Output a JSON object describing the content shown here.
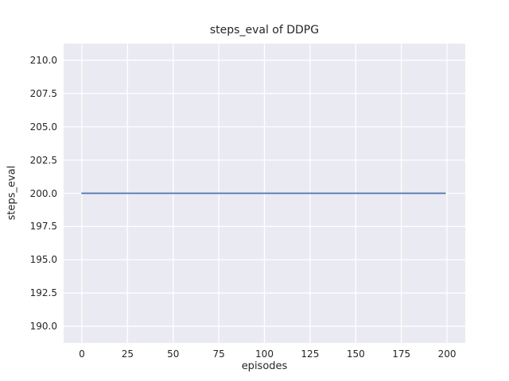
{
  "chart_data": {
    "type": "line",
    "title": "steps_eval of DDPG",
    "xlabel": "episodes",
    "ylabel": "steps_eval",
    "xlim": [
      -10,
      210
    ],
    "ylim": [
      188.75,
      211.25
    ],
    "x_ticks": [
      0,
      25,
      50,
      75,
      100,
      125,
      150,
      175,
      200
    ],
    "x_tick_labels": [
      "0",
      "25",
      "50",
      "75",
      "100",
      "125",
      "150",
      "175",
      "200"
    ],
    "y_ticks": [
      190.0,
      192.5,
      195.0,
      197.5,
      200.0,
      202.5,
      205.0,
      207.5,
      210.0
    ],
    "y_tick_labels": [
      "190.0",
      "192.5",
      "195.0",
      "197.5",
      "200.0",
      "202.5",
      "205.0",
      "207.5",
      "210.0"
    ],
    "grid": true,
    "legend": "none",
    "plot_bg": "#eaeaf2",
    "grid_color": "#ffffff",
    "text_color": "#262626",
    "series": [
      {
        "name": "steps_eval",
        "color": "#4c72b0",
        "x": [
          0,
          199
        ],
        "y": [
          200,
          200
        ]
      }
    ]
  }
}
